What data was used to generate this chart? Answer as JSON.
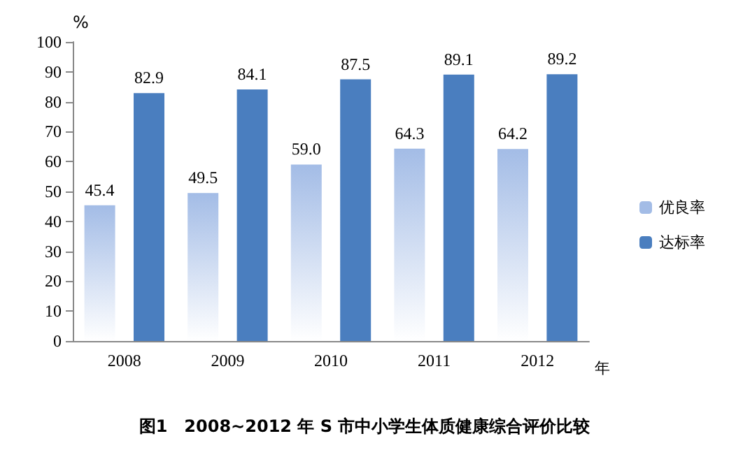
{
  "chart_data": {
    "type": "bar",
    "title": "图1　2008~2012 年 S 市中小学生体质健康综合评价比较",
    "xlabel": "年",
    "ylabel": "%",
    "categories": [
      "2008",
      "2009",
      "2010",
      "2011",
      "2012"
    ],
    "series": [
      {
        "name": "优良率",
        "color": "#a3bce6",
        "values": [
          45.4,
          49.5,
          59.0,
          64.3,
          64.2
        ],
        "value_labels": [
          "45.4",
          "49.5",
          "59.0",
          "64.3",
          "64.2"
        ]
      },
      {
        "name": "达标率",
        "color": "#4a7ebf",
        "values": [
          82.9,
          84.1,
          87.5,
          89.1,
          89.2
        ],
        "value_labels": [
          "82.9",
          "84.1",
          "87.5",
          "89.1",
          "89.2"
        ]
      }
    ],
    "ylim": [
      0,
      100
    ],
    "yticks": [
      0,
      10,
      20,
      30,
      40,
      50,
      60,
      70,
      80,
      90,
      100
    ],
    "grid": false,
    "legend": "right"
  }
}
